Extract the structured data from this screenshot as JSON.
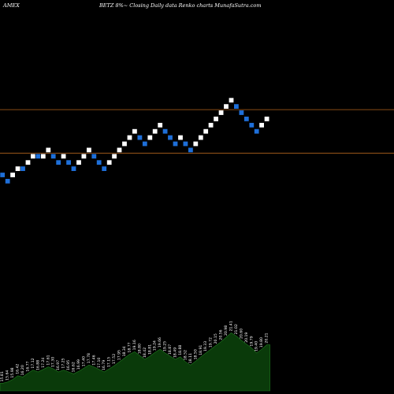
{
  "header": {
    "exchange": "AMEX",
    "title": "BETZ 8%~ Closing Daily data Renko charts MunafaSutra.com"
  },
  "colors": {
    "background": "#000000",
    "up_brick": "#ffffff",
    "down_brick": "#1e6fd9",
    "reference_line": "#b5651d",
    "volume_fill": "#0a3a0a",
    "volume_edge": "#1f7a1f"
  },
  "chart_data": {
    "type": "renko",
    "title": "BETZ 8%~ Closing Daily data Renko charts MunafaSutra.com",
    "bricks": [
      {
        "dir": "down",
        "level": 0
      },
      {
        "dir": "down",
        "level": -1
      },
      {
        "dir": "up",
        "level": 0
      },
      {
        "dir": "up",
        "level": 1
      },
      {
        "dir": "down",
        "level": 1
      },
      {
        "dir": "up",
        "level": 2
      },
      {
        "dir": "up",
        "level": 3
      },
      {
        "dir": "down",
        "level": 3
      },
      {
        "dir": "up",
        "level": 3
      },
      {
        "dir": "up",
        "level": 4
      },
      {
        "dir": "down",
        "level": 3
      },
      {
        "dir": "down",
        "level": 2
      },
      {
        "dir": "up",
        "level": 3
      },
      {
        "dir": "down",
        "level": 2
      },
      {
        "dir": "down",
        "level": 1
      },
      {
        "dir": "up",
        "level": 2
      },
      {
        "dir": "up",
        "level": 3
      },
      {
        "dir": "up",
        "level": 4
      },
      {
        "dir": "down",
        "level": 3
      },
      {
        "dir": "down",
        "level": 2
      },
      {
        "dir": "down",
        "level": 1
      },
      {
        "dir": "up",
        "level": 2
      },
      {
        "dir": "up",
        "level": 3
      },
      {
        "dir": "up",
        "level": 4
      },
      {
        "dir": "up",
        "level": 5
      },
      {
        "dir": "up",
        "level": 6
      },
      {
        "dir": "up",
        "level": 7
      },
      {
        "dir": "down",
        "level": 6
      },
      {
        "dir": "down",
        "level": 5
      },
      {
        "dir": "up",
        "level": 6
      },
      {
        "dir": "up",
        "level": 7
      },
      {
        "dir": "up",
        "level": 8
      },
      {
        "dir": "down",
        "level": 7
      },
      {
        "dir": "down",
        "level": 6
      },
      {
        "dir": "down",
        "level": 5
      },
      {
        "dir": "up",
        "level": 6
      },
      {
        "dir": "down",
        "level": 5
      },
      {
        "dir": "down",
        "level": 4
      },
      {
        "dir": "up",
        "level": 5
      },
      {
        "dir": "up",
        "level": 6
      },
      {
        "dir": "up",
        "level": 7
      },
      {
        "dir": "up",
        "level": 8
      },
      {
        "dir": "up",
        "level": 9
      },
      {
        "dir": "up",
        "level": 10
      },
      {
        "dir": "up",
        "level": 11
      },
      {
        "dir": "up",
        "level": 12
      },
      {
        "dir": "down",
        "level": 11
      },
      {
        "dir": "down",
        "level": 10
      },
      {
        "dir": "down",
        "level": 9
      },
      {
        "dir": "down",
        "level": 8
      },
      {
        "dir": "down",
        "level": 7
      },
      {
        "dir": "up",
        "level": 8
      },
      {
        "dir": "up",
        "level": 9
      }
    ],
    "reference_levels": [
      10.5,
      3.5
    ],
    "level_range": [
      -30,
      13
    ],
    "volume": [
      0.12,
      0.14,
      0.18,
      0.24,
      0.22,
      0.28,
      0.33,
      0.3,
      0.34,
      0.38,
      0.35,
      0.3,
      0.33,
      0.3,
      0.27,
      0.31,
      0.36,
      0.41,
      0.38,
      0.34,
      0.3,
      0.35,
      0.4,
      0.46,
      0.52,
      0.58,
      0.62,
      0.56,
      0.5,
      0.55,
      0.61,
      0.66,
      0.6,
      0.55,
      0.5,
      0.54,
      0.46,
      0.41,
      0.47,
      0.54,
      0.6,
      0.66,
      0.72,
      0.78,
      0.85,
      0.92,
      0.87,
      0.8,
      0.74,
      0.68,
      0.6,
      0.66,
      0.73
    ],
    "volume_labels": [
      "15.81",
      "15.64",
      "15.98",
      "16.42",
      "16.20",
      "16.77",
      "17.12",
      "16.88",
      "17.24",
      "17.61",
      "17.30",
      "16.97",
      "17.25",
      "16.95",
      "16.62",
      "16.99",
      "17.40",
      "17.78",
      "17.46",
      "17.10",
      "16.79",
      "17.15",
      "17.52",
      "17.95",
      "18.34",
      "18.77",
      "19.16",
      "18.80",
      "18.42",
      "18.81",
      "19.24",
      "19.66",
      "19.25",
      "18.87",
      "18.49",
      "18.88",
      "18.52",
      "18.11",
      "18.50",
      "18.91",
      "19.33",
      "19.72",
      "20.15",
      "20.56",
      "20.98",
      "21.41",
      "21.02",
      "20.60",
      "20.19",
      "19.79",
      "19.40",
      "19.80",
      "20.21"
    ]
  }
}
